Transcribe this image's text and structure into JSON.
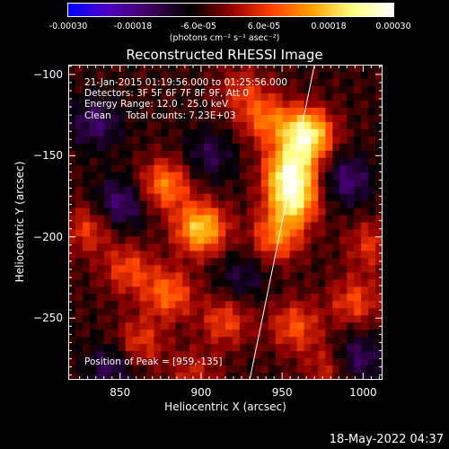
{
  "colorbar": {
    "ticks": [
      "-0.00030",
      "-0.00018",
      "-6.0e-05",
      "6.0e-05",
      "0.00018",
      "0.00030"
    ],
    "units": "(photons cm⁻² s⁻¹ asec⁻²)",
    "colors": [
      "#0000ff",
      "#5000c0",
      "#400060",
      "#000000",
      "#900000",
      "#ff4000",
      "#ffa000",
      "#ffff80",
      "#ffffff"
    ]
  },
  "chart_data": {
    "type": "heatmap",
    "title": "Reconstructed RHESSI Image",
    "xlabel": "Heliocentric X (arcsec)",
    "ylabel": "Heliocentric Y (arcsec)",
    "xlim": [
      818,
      1012
    ],
    "ylim": [
      -288,
      -94
    ],
    "xticks": [
      850,
      900,
      950,
      1000
    ],
    "yticks": [
      -100,
      -150,
      -200,
      -250
    ],
    "value_range": [
      -0.0003,
      0.0003
    ],
    "peaks": [
      {
        "x": 965,
        "y": -137,
        "v": 0.0003
      },
      {
        "x": 955,
        "y": -160,
        "v": 0.00026
      },
      {
        "x": 957,
        "y": -178,
        "v": 0.00023
      },
      {
        "x": 947,
        "y": -200,
        "v": 0.00016
      },
      {
        "x": 940,
        "y": -128,
        "v": 0.00014
      },
      {
        "x": 900,
        "y": -195,
        "v": 0.00024
      },
      {
        "x": 878,
        "y": -168,
        "v": 0.00017
      },
      {
        "x": 880,
        "y": -235,
        "v": 0.00015
      },
      {
        "x": 855,
        "y": -220,
        "v": 0.00012
      },
      {
        "x": 915,
        "y": -252,
        "v": 0.00012
      },
      {
        "x": 958,
        "y": -255,
        "v": 0.00013
      },
      {
        "x": 995,
        "y": -240,
        "v": 0.00012
      },
      {
        "x": 1005,
        "y": -205,
        "v": 0.0001
      },
      {
        "x": 830,
        "y": -195,
        "v": 0.00011
      },
      {
        "x": 862,
        "y": -265,
        "v": 0.00011
      },
      {
        "x": 895,
        "y": -285,
        "v": 8e-05
      },
      {
        "x": 980,
        "y": -280,
        "v": 0.0001
      },
      {
        "x": 925,
        "y": -110,
        "v": 9e-05
      }
    ],
    "troughs": [
      {
        "x": 835,
        "y": -130,
        "v": -0.0001
      },
      {
        "x": 850,
        "y": -180,
        "v": -0.00012
      },
      {
        "x": 845,
        "y": -280,
        "v": -9e-05
      },
      {
        "x": 990,
        "y": -165,
        "v": -0.00011
      },
      {
        "x": 905,
        "y": -150,
        "v": -8e-05
      },
      {
        "x": 925,
        "y": -225,
        "v": -7e-05
      },
      {
        "x": 995,
        "y": -275,
        "v": -0.00012
      }
    ],
    "limb_line": {
      "x": [
        930,
        970
      ],
      "y": [
        -288,
        -94
      ]
    }
  },
  "info": {
    "line1": "21-Jan-2015 01:19:56.000 to 01:25:56.000",
    "line2": "Detectors: 3F 5F 6F 7F 8F 9F, Att 0",
    "line3": "Energy Range: 12.0 - 25.0 keV",
    "line4": "Clean     Total counts: 7.23E+03",
    "peak": "Position of Peak = [959,-135]"
  },
  "timestamp": "18-May-2022 04:37"
}
